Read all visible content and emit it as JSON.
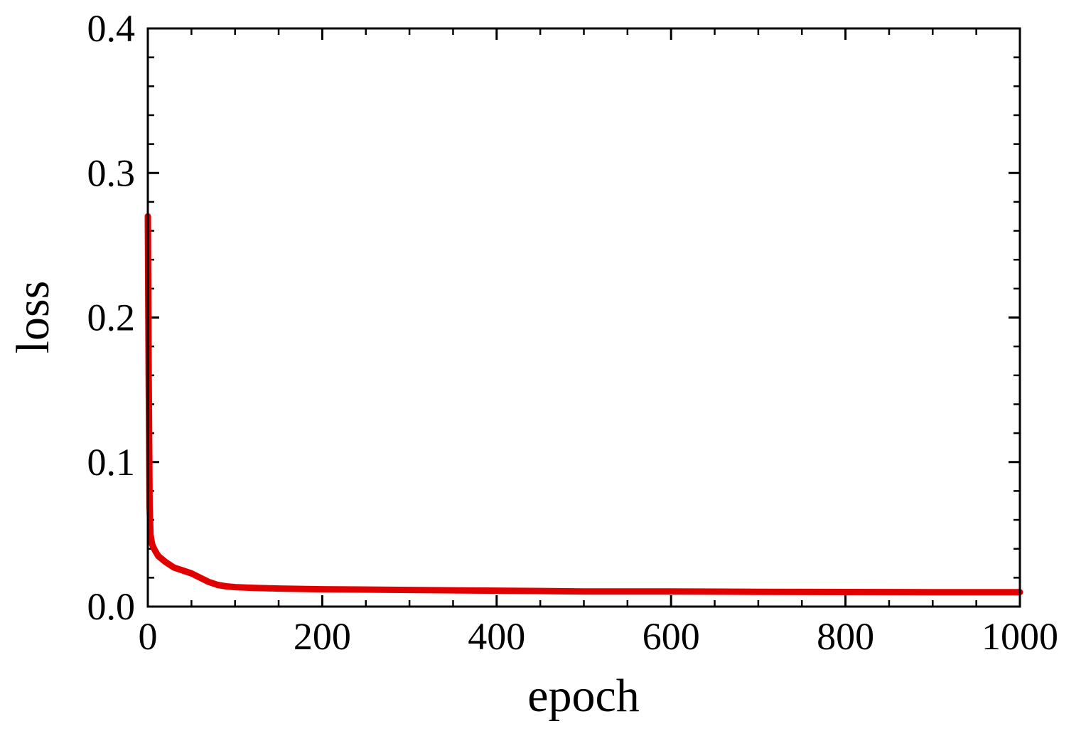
{
  "chart_data": {
    "type": "line",
    "title": "",
    "xlabel": "epoch",
    "ylabel": "loss",
    "xlim": [
      0,
      1000
    ],
    "ylim": [
      0,
      0.4
    ],
    "x_ticks": [
      0,
      200,
      400,
      600,
      800,
      1000
    ],
    "y_ticks": [
      0.0,
      0.1,
      0.2,
      0.3,
      0.4
    ],
    "x_tick_labels": [
      "0",
      "200",
      "400",
      "600",
      "800",
      "1000"
    ],
    "y_tick_labels": [
      "0.0",
      "0.1",
      "0.2",
      "0.3",
      "0.4"
    ],
    "x_minor_step": 50,
    "y_minor_step": 0.02,
    "grid": false,
    "legend": "none",
    "series": [
      {
        "color": "#e00000",
        "x": [
          0,
          1,
          2,
          3,
          5,
          8,
          12,
          20,
          30,
          40,
          50,
          60,
          70,
          80,
          90,
          100,
          120,
          150,
          200,
          300,
          400,
          500,
          600,
          700,
          800,
          900,
          1000
        ],
        "y": [
          0.27,
          0.16,
          0.07,
          0.05,
          0.043,
          0.039,
          0.035,
          0.031,
          0.027,
          0.025,
          0.023,
          0.02,
          0.017,
          0.015,
          0.014,
          0.0135,
          0.013,
          0.0125,
          0.012,
          0.0115,
          0.011,
          0.0105,
          0.0105,
          0.0102,
          0.0101,
          0.01,
          0.01
        ]
      }
    ]
  }
}
